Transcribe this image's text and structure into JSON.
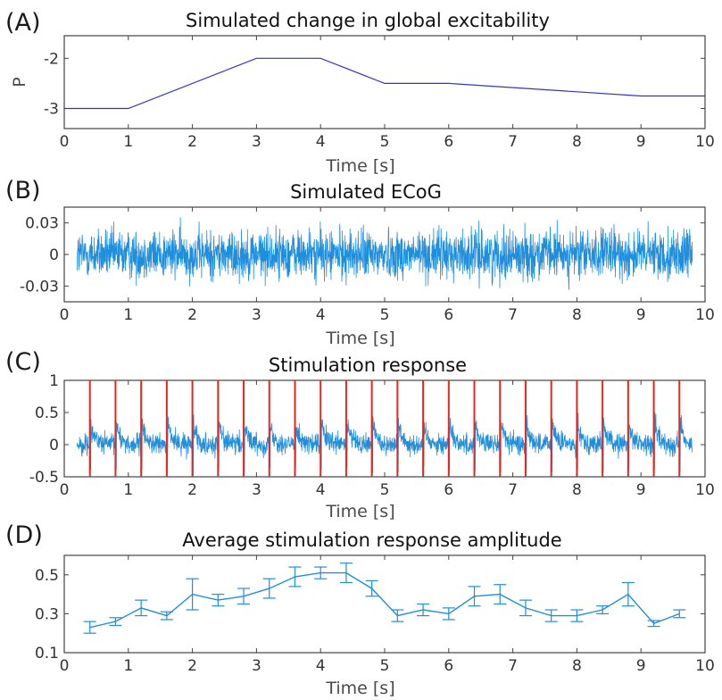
{
  "colors": {
    "blue_line": "#3333cc",
    "signal": "#1f8fdc",
    "stim": "#e8261e",
    "axis": "#444444"
  },
  "chart_data": [
    {
      "panel": "(A)",
      "type": "line",
      "title": "Simulated change in global excitability",
      "xlabel": "Time [s]",
      "ylabel": "P",
      "xlim": [
        0,
        10
      ],
      "ylim": [
        -3.4,
        -1.55
      ],
      "xticks": [
        0,
        1,
        2,
        3,
        4,
        5,
        6,
        7,
        8,
        9,
        10
      ],
      "yticks": [
        -3,
        -2
      ],
      "ytick_labels": [
        "-3",
        "-2"
      ],
      "x": [
        0,
        1,
        3,
        4,
        5,
        6,
        9,
        10
      ],
      "y": [
        -3,
        -3,
        -2,
        -2,
        -2.5,
        -2.5,
        -2.75,
        -2.75
      ]
    },
    {
      "panel": "(B)",
      "type": "line",
      "title": "Simulated ECoG",
      "xlabel": "Time [s]",
      "xlim": [
        0,
        10
      ],
      "ylim": [
        -0.045,
        0.045
      ],
      "xticks": [
        0,
        1,
        2,
        3,
        4,
        5,
        6,
        7,
        8,
        9,
        10
      ],
      "yticks": [
        -0.03,
        0,
        0.03
      ],
      "ytick_labels": [
        "-0.03",
        "0",
        "0.03"
      ],
      "signal_range": [
        0.2,
        9.8
      ],
      "signal_amplitude": 0.03
    },
    {
      "panel": "(C)",
      "type": "line",
      "title": "Stimulation response",
      "xlabel": "Time [s]",
      "xlim": [
        0,
        10
      ],
      "ylim": [
        -0.5,
        1
      ],
      "xticks": [
        0,
        1,
        2,
        3,
        4,
        5,
        6,
        7,
        8,
        9,
        10
      ],
      "yticks": [
        -0.5,
        0,
        0.5,
        1
      ],
      "ytick_labels": [
        "-0.5",
        "0",
        "0.5",
        "1"
      ],
      "signal_range": [
        0.2,
        9.8
      ],
      "stim_times": [
        0.4,
        0.8,
        1.2,
        1.6,
        2.0,
        2.4,
        2.8,
        3.2,
        3.6,
        4.0,
        4.4,
        4.8,
        5.2,
        5.6,
        6.0,
        6.4,
        6.8,
        7.2,
        7.6,
        8.0,
        8.4,
        8.8,
        9.2,
        9.6
      ]
    },
    {
      "panel": "(D)",
      "type": "line",
      "title": "Average stimulation response amplitude",
      "xlabel": "Time [s]",
      "xlim": [
        0,
        10
      ],
      "ylim": [
        0.1,
        0.6
      ],
      "xticks": [
        0,
        1,
        2,
        3,
        4,
        5,
        6,
        7,
        8,
        9,
        10
      ],
      "yticks": [
        0.1,
        0.3,
        0.5
      ],
      "ytick_labels": [
        "0.1",
        "0.3",
        "0.5"
      ],
      "x": [
        0.4,
        0.8,
        1.2,
        1.6,
        2.0,
        2.4,
        2.8,
        3.2,
        3.6,
        4.0,
        4.4,
        4.8,
        5.2,
        5.6,
        6.0,
        6.4,
        6.8,
        7.2,
        7.6,
        8.0,
        8.4,
        8.8,
        9.2,
        9.6
      ],
      "y": [
        0.23,
        0.26,
        0.33,
        0.29,
        0.4,
        0.37,
        0.39,
        0.43,
        0.49,
        0.51,
        0.51,
        0.43,
        0.29,
        0.32,
        0.3,
        0.39,
        0.4,
        0.33,
        0.29,
        0.29,
        0.32,
        0.4,
        0.25,
        0.3
      ],
      "err": [
        0.03,
        0.02,
        0.04,
        0.02,
        0.08,
        0.03,
        0.04,
        0.05,
        0.05,
        0.03,
        0.05,
        0.04,
        0.03,
        0.03,
        0.03,
        0.05,
        0.05,
        0.04,
        0.03,
        0.03,
        0.02,
        0.06,
        0.015,
        0.02
      ]
    }
  ]
}
